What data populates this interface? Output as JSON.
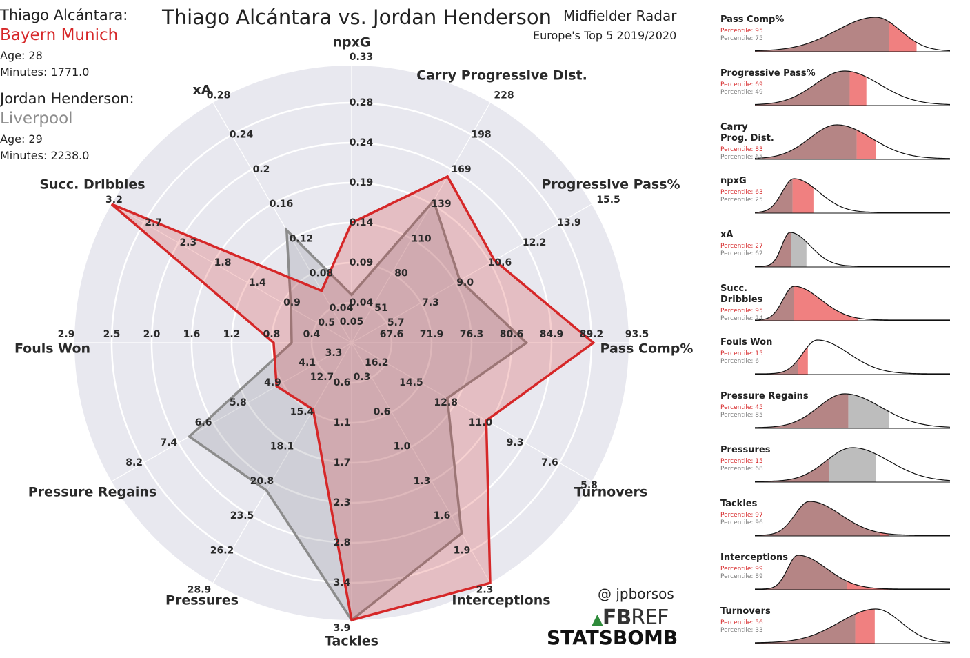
{
  "header": {
    "player1_label": "Thiago Alcántara:",
    "player1_club": "Bayern Munich",
    "player1_age": "Age: 28",
    "player1_minutes": "Minutes: 1771.0",
    "player2_label": "Jordan Henderson:",
    "player2_club": "Liverpool",
    "player2_age": "Age: 29",
    "player2_minutes": "Minutes: 2238.0",
    "title": "Thiago Alcántara vs. Jordan Henderson",
    "subtitle": "Midfielder Radar",
    "subtitle2": "Europe's Top 5 2019/2020",
    "credit": "@ jpborsos",
    "logo_fbref_a": "FB",
    "logo_fbref_b": "REF",
    "logo_statsbomb": "STATSBOMB"
  },
  "colors": {
    "player1": "#d62728",
    "player2": "#8c8c8c",
    "radar_bg": "#e8e8ef",
    "p1_fill": "#f08080",
    "p2_fill": "#bdbdbd",
    "overlap_fill": "#b58585"
  },
  "chart_data": [
    {
      "type": "radar",
      "axes": [
        {
          "label": "npxG",
          "ticks": [
            "0.04",
            "0.09",
            "0.14",
            "0.19",
            "0.24",
            "0.28",
            "0.33"
          ],
          "center": "0.05"
        },
        {
          "label": "Carry Progressive Dist.",
          "ticks": [
            "51",
            "80",
            "110",
            "139",
            "169",
            "198",
            "228"
          ]
        },
        {
          "label": "Progressive Pass%",
          "ticks": [
            "5.7",
            "7.3",
            "9.0",
            "10.6",
            "12.2",
            "13.9",
            "15.5"
          ]
        },
        {
          "label": "Pass Comp%",
          "ticks": [
            "67.6",
            "71.9",
            "76.3",
            "80.6",
            "84.9",
            "89.2",
            "93.5"
          ]
        },
        {
          "label": "Turnovers",
          "ticks": [
            "16.2",
            "14.5",
            "12.8",
            "11.0",
            "9.3",
            "7.6",
            "5.8"
          ]
        },
        {
          "label": "Interceptions",
          "ticks": [
            "0.3",
            "0.6",
            "1.0",
            "1.3",
            "1.6",
            "1.9",
            "2.3"
          ]
        },
        {
          "label": "Tackles",
          "ticks": [
            "0.6",
            "1.1",
            "1.7",
            "2.3",
            "2.8",
            "3.4",
            "3.9"
          ]
        },
        {
          "label": "Pressures",
          "ticks": [
            "12.7",
            "15.4",
            "18.1",
            "20.8",
            "23.5",
            "26.2",
            "28.9"
          ]
        },
        {
          "label": "Pressure Regains",
          "ticks": [
            "4.1",
            "4.9",
            "5.8",
            "6.6",
            "7.4",
            "8.2"
          ],
          "center": "3.3"
        },
        {
          "label": "Fouls Won",
          "ticks": [
            "0.4",
            "0.8",
            "1.2",
            "1.6",
            "2.0",
            "2.5",
            "2.9"
          ]
        },
        {
          "label": "Succ. Dribbles",
          "ticks": [
            "0.5",
            "0.9",
            "1.4",
            "1.8",
            "2.3",
            "2.7",
            "3.2"
          ]
        },
        {
          "label": "xA",
          "ticks": [
            "0.04",
            "0.08",
            "0.12",
            "0.16",
            "0.2",
            "0.24",
            "0.28"
          ]
        }
      ],
      "series": [
        {
          "name": "Thiago Alcántara",
          "values": [
            0.14,
            163,
            10.8,
            89.4,
            11.2,
            2.32,
            3.95,
            15.2,
            5.05,
            0.78,
            3.3,
            0.06
          ]
        },
        {
          "name": "Jordan Henderson",
          "values": [
            0.05,
            142,
            9.2,
            82.2,
            13.2,
            1.75,
            3.95,
            21.5,
            7.15,
            0.6,
            0.8,
            0.13
          ]
        }
      ]
    },
    {
      "type": "area",
      "panels": [
        {
          "label": "Pass Comp%",
          "p1_text": "Percentile: 95",
          "p2_text": "Percentile: 75",
          "p1": 95,
          "p2": 75,
          "peak": 0.62,
          "spread": 0.18,
          "skew": -0.5
        },
        {
          "label": "Progressive Pass%",
          "p1_text": "Percentile: 69",
          "p2_text": "Percentile: 49",
          "p1": 69,
          "p2": 49,
          "peak": 0.46,
          "spread": 0.16,
          "skew": 0.2
        },
        {
          "label": "Carry\nProg. Dist.",
          "p1_text": "Percentile: 83",
          "p2_text": "Percentile: 65",
          "p1": 83,
          "p2": 65,
          "peak": 0.42,
          "spread": 0.15,
          "skew": 0.3
        },
        {
          "label": "npxG",
          "p1_text": "Percentile: 63",
          "p2_text": "Percentile: 25",
          "p1": 63,
          "p2": 25,
          "peak": 0.2,
          "spread": 0.08,
          "skew": 1.0
        },
        {
          "label": "xA",
          "p1_text": "Percentile: 27",
          "p2_text": "Percentile: 62",
          "p1": 27,
          "p2": 62,
          "peak": 0.18,
          "spread": 0.06,
          "skew": 1.2
        },
        {
          "label": "Succ.\nDribbles",
          "p1_text": "Percentile: 95",
          "p2_text": "Percentile: 24",
          "p1": 95,
          "p2": 24,
          "peak": 0.2,
          "spread": 0.08,
          "skew": 1.2
        },
        {
          "label": "Fouls Won",
          "p1_text": "Percentile: 15",
          "p2_text": "Percentile: 6",
          "p1": 15,
          "p2": 6,
          "peak": 0.32,
          "spread": 0.1,
          "skew": 1.0
        },
        {
          "label": "Pressure Regains",
          "p1_text": "Percentile: 45",
          "p2_text": "Percentile: 85",
          "p1": 45,
          "p2": 85,
          "peak": 0.46,
          "spread": 0.15,
          "skew": 0.4
        },
        {
          "label": "Pressures",
          "p1_text": "Percentile: 15",
          "p2_text": "Percentile: 68",
          "p1": 15,
          "p2": 68,
          "peak": 0.5,
          "spread": 0.15,
          "skew": 0.4
        },
        {
          "label": "Tackles",
          "p1_text": "Percentile: 97",
          "p2_text": "Percentile: 96",
          "p1": 97,
          "p2": 96,
          "peak": 0.28,
          "spread": 0.1,
          "skew": 1.0
        },
        {
          "label": "Interceptions",
          "p1_text": "Percentile: 99",
          "p2_text": "Percentile: 89",
          "p1": 99,
          "p2": 89,
          "peak": 0.22,
          "spread": 0.08,
          "skew": 1.4
        },
        {
          "label": "Turnovers",
          "p1_text": "Percentile: 56",
          "p2_text": "Percentile: 33",
          "p1": 56,
          "p2": 33,
          "peak": 0.62,
          "spread": 0.17,
          "skew": -0.4
        }
      ]
    }
  ]
}
